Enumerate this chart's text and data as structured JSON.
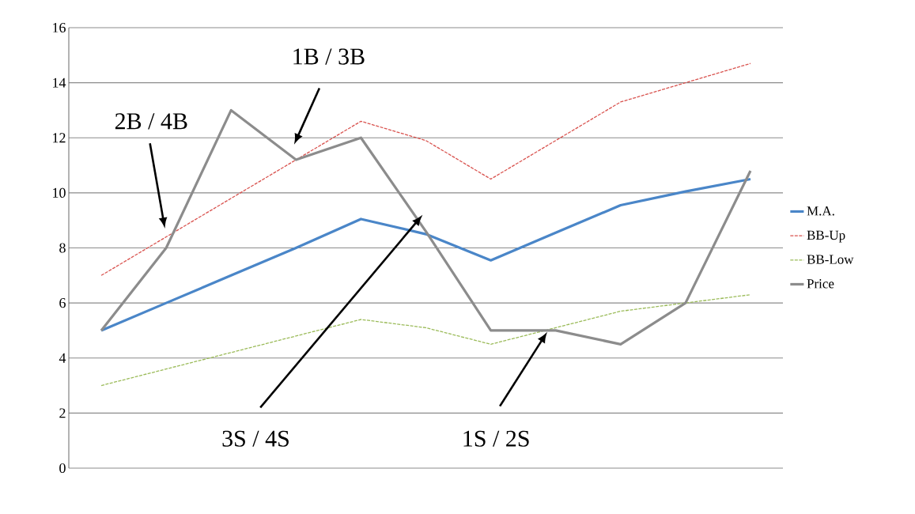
{
  "chart_data": {
    "type": "line",
    "categories": [
      null,
      null,
      null,
      null,
      null,
      null,
      null,
      null,
      null,
      null,
      null
    ],
    "series": [
      {
        "name": "M.A.",
        "color": "#4a86c8",
        "line_style": "solid",
        "values": [
          5,
          6,
          7,
          8,
          9.05,
          8.5,
          7.55,
          8.55,
          9.55,
          10.05,
          10.5
        ]
      },
      {
        "name": "BB-Up",
        "color": "#d9534f",
        "line_style": "dashed",
        "values": [
          7,
          8.4,
          9.8,
          11.2,
          12.6,
          11.9,
          10.5,
          11.9,
          13.3,
          14.0,
          14.7
        ]
      },
      {
        "name": "BB-Low",
        "color": "#9bbb59",
        "line_style": "dashed",
        "values": [
          3,
          3.6,
          4.2,
          4.8,
          5.4,
          5.1,
          4.5,
          5.1,
          5.7,
          6.0,
          6.3
        ]
      },
      {
        "name": "Price",
        "color": "#8c8c8c",
        "line_style": "solid",
        "values": [
          5,
          8,
          13,
          11.2,
          12,
          8.6,
          5,
          5,
          4.5,
          6,
          10.8
        ]
      }
    ],
    "ylim": [
      0,
      16
    ],
    "yticks": [
      0,
      2,
      4,
      6,
      8,
      10,
      12,
      14,
      16
    ],
    "grid": "y",
    "legend": "right",
    "tick_labels": "y",
    "marker": "none",
    "annotations": [
      "2B / 4B",
      "1B / 3B",
      "3S / 4S",
      "1S / 2S"
    ]
  }
}
